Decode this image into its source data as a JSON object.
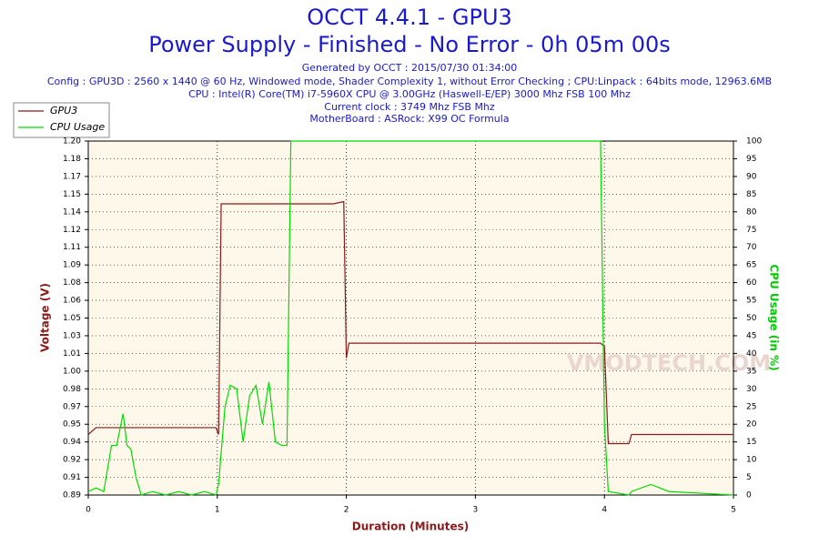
{
  "chart_data": {
    "type": "line",
    "title": "OCCT 4.4.1 - GPU3",
    "subtitle": "Power Supply - Finished - No Error - 0h 05m 00s",
    "header_lines": [
      "Generated by OCCT : 2015/07/30 01:34:00",
      "Config : GPU3D : 2560 x 1440 @ 60 Hz, Windowed mode, Shader Complexity 1, without Error Checking ; CPU:Linpack : 64bits mode, 12963.6MB",
      "CPU : Intel(R) Core(TM) i7-5960X CPU @ 3.00GHz (Haswell-E/EP) 3000 Mhz FSB 100 Mhz",
      "Current clock : 3749 Mhz FSB  Mhz",
      "MotherBoard : ASRock: X99 OC Formula"
    ],
    "watermark": "VMODTECH.COM",
    "x_label": "Duration (Minutes)",
    "y_label": "Voltage (V)",
    "y2_label": "CPU Usage (in %)",
    "x": [
      0,
      0.06,
      0.12,
      0.18,
      0.22,
      0.27,
      0.3,
      0.33,
      0.37,
      0.41,
      0.5,
      0.6,
      0.7,
      0.8,
      0.9,
      0.99,
      1.01,
      1.03,
      1.06,
      1.1,
      1.15,
      1.2,
      1.25,
      1.3,
      1.35,
      1.4,
      1.45,
      1.5,
      1.54,
      1.57,
      1.7,
      1.9,
      1.98,
      2.0,
      2.02,
      2.5,
      3.0,
      3.5,
      3.97,
      4.0,
      4.03,
      4.19,
      4.21,
      4.36,
      4.5,
      5.0
    ],
    "series": [
      {
        "name": "GPU3",
        "color": "#8b1a1a",
        "axis": "y",
        "values": [
          0.943,
          0.949,
          0.949,
          0.949,
          0.949,
          0.949,
          0.949,
          0.949,
          0.949,
          0.949,
          0.949,
          0.949,
          0.949,
          0.949,
          0.949,
          0.949,
          0.943,
          1.145,
          1.145,
          1.145,
          1.145,
          1.145,
          1.145,
          1.145,
          1.145,
          1.145,
          1.145,
          1.145,
          1.145,
          1.145,
          1.145,
          1.145,
          1.147,
          1.01,
          1.023,
          1.023,
          1.023,
          1.023,
          1.023,
          1.02,
          0.935,
          0.935,
          0.943,
          0.943,
          0.943,
          0.943
        ]
      },
      {
        "name": "CPU Usage",
        "color": "#00dd00",
        "axis": "y2",
        "values": [
          1,
          2,
          1,
          14,
          14,
          23,
          14,
          13,
          5,
          0,
          1,
          0,
          1,
          0,
          1,
          0,
          3,
          12,
          25,
          31,
          30,
          15,
          28,
          31,
          20,
          32,
          15,
          14,
          14,
          100,
          100,
          100,
          100,
          100,
          100,
          100,
          100,
          100,
          100,
          20,
          1,
          0,
          1,
          3,
          1,
          0
        ]
      }
    ],
    "xlim": [
      0,
      5
    ],
    "xticks": [
      0,
      1,
      2,
      3,
      4,
      5
    ],
    "ylim": [
      0.89,
      1.2
    ],
    "yticks": [
      {
        "value": 0.89,
        "label": "0.89"
      },
      {
        "value": 0.9055,
        "label": "0.91"
      },
      {
        "value": 0.921,
        "label": "0.92"
      },
      {
        "value": 0.9365,
        "label": "0.94"
      },
      {
        "value": 0.952,
        "label": "0.95"
      },
      {
        "value": 0.9675,
        "label": "0.97"
      },
      {
        "value": 0.983,
        "label": "0.98"
      },
      {
        "value": 0.9985,
        "label": "1.00"
      },
      {
        "value": 1.014,
        "label": "1.01"
      },
      {
        "value": 1.0295,
        "label": "1.03"
      },
      {
        "value": 1.045,
        "label": "1.05"
      },
      {
        "value": 1.0605,
        "label": "1.06"
      },
      {
        "value": 1.076,
        "label": "1.08"
      },
      {
        "value": 1.0915,
        "label": "1.09"
      },
      {
        "value": 1.107,
        "label": "1.11"
      },
      {
        "value": 1.1225,
        "label": "1.12"
      },
      {
        "value": 1.138,
        "label": "1.14"
      },
      {
        "value": 1.1535,
        "label": "1.15"
      },
      {
        "value": 1.169,
        "label": "1.17"
      },
      {
        "value": 1.1845,
        "label": "1.18"
      },
      {
        "value": 1.2,
        "label": "1.20"
      }
    ],
    "y2lim": [
      0,
      100
    ],
    "y2ticks": [
      0,
      5,
      10,
      15,
      20,
      25,
      30,
      35,
      40,
      45,
      50,
      55,
      60,
      65,
      70,
      75,
      80,
      85,
      90,
      95,
      100
    ],
    "grid": true
  }
}
